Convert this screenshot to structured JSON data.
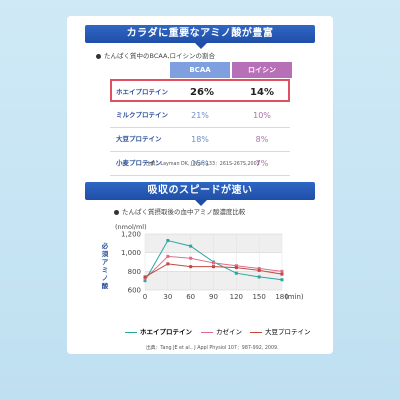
{
  "section1": {
    "banner": "カラダに重要なアミノ酸が豊富",
    "subhead": "たんぱく質中のBCAA,ロイシンの割合",
    "columns": [
      "BCAA",
      "ロイシン"
    ],
    "column_colors": [
      "#7f9fde",
      "#b76fb7"
    ],
    "rows": [
      {
        "name": "ホエイプロテイン",
        "bcaa": "26%",
        "leucine": "14%",
        "highlight": true
      },
      {
        "name": "ミルクプロテイン",
        "bcaa": "21%",
        "leucine": "10%"
      },
      {
        "name": "大豆プロテイン",
        "bcaa": "18%",
        "leucine": "8%"
      },
      {
        "name": "小麦プロテイン",
        "bcaa": "15%",
        "leucine": "7%"
      }
    ],
    "source": "出典：Layman DK, J Nutr 133：261S-267S,2003"
  },
  "section2": {
    "banner": "吸収のスピードが速い",
    "subhead": "たんぱく質摂取後の血中アミノ酸濃度比較",
    "source": "出典：Tang JE et al., J Appl Physiol 107：987-992, 2009."
  },
  "chart_data": {
    "type": "line",
    "ylabel_unit": "(nmol/ml)",
    "ylabel": "必須アミノ酸",
    "xlabel_unit": "(min)",
    "x": [
      0,
      30,
      60,
      90,
      120,
      150,
      180
    ],
    "ylim": [
      600,
      1200
    ],
    "yticks": [
      "1,200",
      "1,000",
      "800",
      "600"
    ],
    "ytick_values": [
      1200,
      1000,
      800,
      600
    ],
    "xtick_labels": [
      "0",
      "30",
      "60",
      "90",
      "120",
      "150",
      "180"
    ],
    "series": [
      {
        "name": "ホエイプロテイン",
        "color": "#2aa6a0",
        "values": [
          700,
          1130,
          1070,
          900,
          780,
          740,
          710
        ]
      },
      {
        "name": "カゼイン",
        "color": "#e06c8a",
        "values": [
          720,
          960,
          940,
          890,
          860,
          830,
          800
        ]
      },
      {
        "name": "大豆プロテイン",
        "color": "#c4473f",
        "values": [
          740,
          880,
          850,
          850,
          840,
          810,
          770
        ]
      }
    ]
  }
}
